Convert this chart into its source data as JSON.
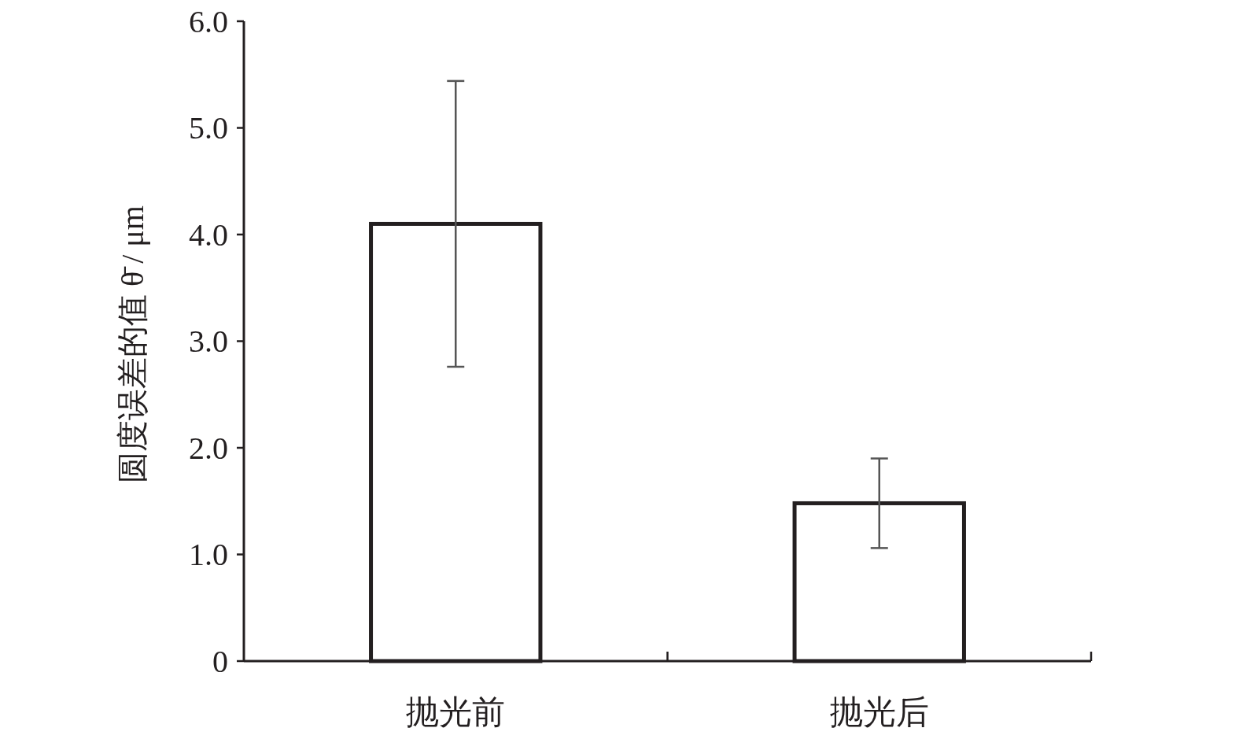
{
  "chart_data": {
    "type": "bar",
    "ylabel": "圆度误差的值 θ̄ / μm",
    "categories": [
      "抛光前",
      "抛光后"
    ],
    "values": [
      4.1,
      1.48
    ],
    "errors": [
      1.34,
      0.42
    ],
    "color": "#ffffff",
    "ylim": [
      0,
      6
    ],
    "yticks": [
      0,
      {
        "value": 1,
        "label": "1.0"
      },
      {
        "value": 2,
        "label": "2.0"
      },
      {
        "value": 3,
        "label": "3.0"
      },
      {
        "value": 4,
        "label": "4.0"
      },
      {
        "value": 5,
        "label": "5.0"
      },
      {
        "value": 6,
        "label": "6.0"
      }
    ]
  }
}
